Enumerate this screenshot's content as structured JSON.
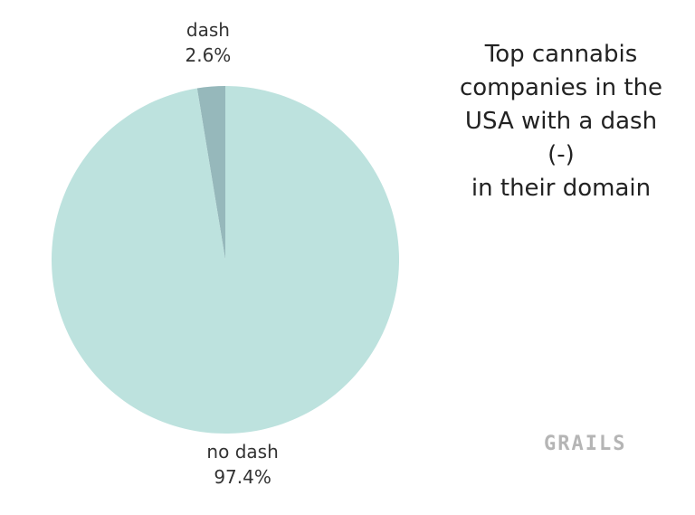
{
  "chart_data": {
    "type": "pie",
    "title_lines": [
      "Top cannabis",
      "companies in the",
      "USA with a dash (-)",
      "in their domain"
    ],
    "slices": [
      {
        "label": "dash",
        "value": 2.6,
        "value_label": "2.6%",
        "color": "#96b8bb"
      },
      {
        "label": "no dash",
        "value": 97.4,
        "value_label": "97.4%",
        "color": "#bde2de"
      }
    ]
  },
  "branding": {
    "logo_text": "GRAILS"
  }
}
